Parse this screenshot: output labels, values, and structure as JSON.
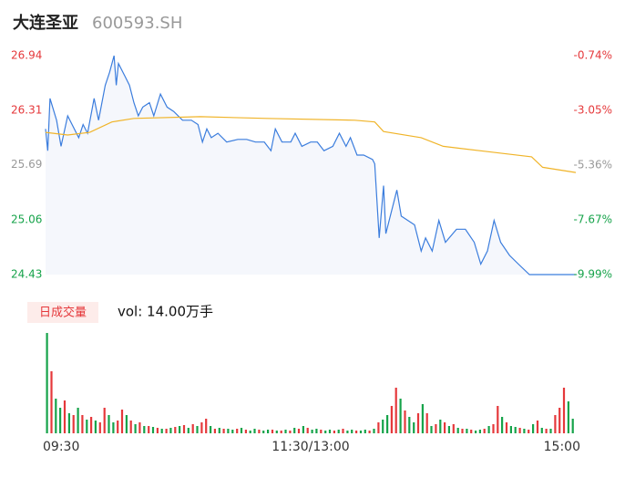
{
  "chart_data": {
    "type": "intraday",
    "title": "大连圣亚",
    "subtitle": "600593.SH",
    "volume_button": "日成交量",
    "volume_label": "vol: 14.00万手",
    "up_color": "#e5383b",
    "down_color": "#16a34a",
    "flat_color": "#999999",
    "line_color": "#3b7ddd",
    "avg_color": "#f0b429",
    "xlim": [
      0,
      240
    ],
    "xticks": [
      {
        "value": 0,
        "label": "09:30"
      },
      {
        "value": 120,
        "label": "11:30/13:00"
      },
      {
        "value": 240,
        "label": "15:00"
      }
    ],
    "ylim": [
      24.43,
      26.94
    ],
    "yticks": [
      26.94,
      26.31,
      25.69,
      25.06,
      24.43
    ],
    "y2lim": [
      -9.99,
      -0.74
    ],
    "y2ticks": [
      {
        "value": -0.74,
        "label": "-0.74%"
      },
      {
        "value": -3.05,
        "label": "-3.05%"
      },
      {
        "value": -5.36,
        "label": "-5.36%"
      },
      {
        "value": -7.67,
        "label": "-7.67%"
      },
      {
        "value": -9.99,
        "label": "-9.99%"
      }
    ],
    "price": {
      "x": [
        0,
        1,
        2,
        5,
        7,
        10,
        12,
        15,
        17,
        19,
        22,
        24,
        27,
        29,
        31,
        32,
        33,
        36,
        38,
        40,
        42,
        44,
        47,
        49,
        52,
        55,
        58,
        62,
        66,
        69,
        71,
        73,
        75,
        78,
        82,
        87,
        91,
        95,
        99,
        102,
        104,
        107,
        111,
        113,
        116,
        120,
        123,
        126,
        130,
        133,
        136,
        138,
        141,
        144,
        148,
        149,
        151,
        153,
        154,
        159,
        161,
        167,
        170,
        172,
        175,
        178,
        181,
        186,
        190,
        194,
        197,
        200,
        203,
        206,
        210,
        214,
        219,
        240
      ],
      "values": [
        26.1,
        25.85,
        26.45,
        26.2,
        25.9,
        26.25,
        26.15,
        26.0,
        26.15,
        26.05,
        26.45,
        26.2,
        26.6,
        26.75,
        26.94,
        26.6,
        26.85,
        26.7,
        26.6,
        26.4,
        26.25,
        26.35,
        26.4,
        26.25,
        26.5,
        26.35,
        26.3,
        26.2,
        26.2,
        26.15,
        25.95,
        26.1,
        26.0,
        26.05,
        25.95,
        25.98,
        25.98,
        25.95,
        25.95,
        25.85,
        26.1,
        25.95,
        25.95,
        26.05,
        25.9,
        25.95,
        25.95,
        25.85,
        25.9,
        26.05,
        25.9,
        26.0,
        25.8,
        25.8,
        25.75,
        25.7,
        24.85,
        25.45,
        24.9,
        25.4,
        25.1,
        25.0,
        24.7,
        24.85,
        24.7,
        25.05,
        24.8,
        24.95,
        24.95,
        24.8,
        24.55,
        24.7,
        25.05,
        24.8,
        24.65,
        24.55,
        24.43,
        24.43
      ]
    },
    "average": {
      "x": [
        0,
        10,
        20,
        30,
        40,
        70,
        100,
        140,
        149,
        153,
        170,
        180,
        200,
        220,
        225,
        240
      ],
      "values": [
        26.06,
        26.03,
        26.06,
        26.18,
        26.22,
        26.24,
        26.22,
        26.2,
        26.18,
        26.07,
        26.0,
        25.9,
        25.84,
        25.78,
        25.66,
        25.6
      ]
    },
    "volume": {
      "ylim": [
        0,
        110
      ],
      "x": [
        0,
        2,
        4,
        6,
        8,
        10,
        12,
        14,
        16,
        18,
        20,
        22,
        24,
        26,
        28,
        30,
        32,
        34,
        36,
        38,
        40,
        42,
        44,
        46,
        48,
        50,
        52,
        54,
        56,
        58,
        60,
        62,
        64,
        66,
        68,
        70,
        72,
        74,
        76,
        78,
        80,
        82,
        84,
        86,
        88,
        90,
        92,
        94,
        96,
        98,
        100,
        102,
        104,
        106,
        108,
        110,
        112,
        114,
        116,
        118,
        120,
        122,
        124,
        126,
        128,
        130,
        132,
        134,
        136,
        138,
        140,
        142,
        144,
        146,
        148,
        150,
        152,
        154,
        156,
        158,
        160,
        162,
        164,
        166,
        168,
        170,
        172,
        174,
        176,
        178,
        180,
        182,
        184,
        186,
        188,
        190,
        192,
        194,
        196,
        198,
        200,
        202,
        204,
        206,
        208,
        210,
        212,
        214,
        216,
        218,
        220,
        222,
        224,
        226,
        228,
        230,
        232,
        234,
        236,
        238
      ],
      "values": [
        110,
        68,
        38,
        28,
        36,
        22,
        20,
        28,
        20,
        15,
        18,
        14,
        12,
        28,
        20,
        12,
        14,
        26,
        20,
        14,
        10,
        12,
        8,
        8,
        7,
        6,
        5,
        5,
        6,
        7,
        8,
        9,
        6,
        10,
        8,
        12,
        16,
        8,
        5,
        6,
        5,
        5,
        4,
        5,
        6,
        4,
        3,
        5,
        4,
        3,
        4,
        4,
        3,
        3,
        4,
        3,
        6,
        5,
        8,
        6,
        4,
        5,
        4,
        3,
        4,
        3,
        4,
        5,
        3,
        4,
        3,
        3,
        4,
        3,
        5,
        12,
        15,
        20,
        30,
        50,
        38,
        25,
        18,
        12,
        22,
        32,
        22,
        8,
        10,
        15,
        12,
        8,
        10,
        6,
        5,
        5,
        4,
        3,
        4,
        5,
        8,
        10,
        30,
        18,
        12,
        8,
        7,
        6,
        5,
        4,
        10,
        14,
        6,
        5,
        5,
        20,
        28,
        50,
        35,
        16
      ],
      "colors": [
        "#16a34a",
        "#e5383b",
        "#16a34a",
        "#16a34a",
        "#e5383b",
        "#16a34a",
        "#e5383b",
        "#16a34a",
        "#e5383b",
        "#16a34a",
        "#e5383b",
        "#16a34a",
        "#e5383b",
        "#e5383b",
        "#16a34a",
        "#16a34a",
        "#e5383b",
        "#e5383b",
        "#16a34a",
        "#e5383b",
        "#16a34a",
        "#e5383b",
        "#16a34a",
        "#e5383b",
        "#16a34a",
        "#e5383b",
        "#16a34a",
        "#e5383b",
        "#16a34a",
        "#e5383b",
        "#16a34a",
        "#e5383b",
        "#16a34a",
        "#e5383b",
        "#16a34a",
        "#e5383b",
        "#e5383b",
        "#16a34a",
        "#e5383b",
        "#16a34a",
        "#e5383b",
        "#16a34a",
        "#16a34a",
        "#e5383b",
        "#16a34a",
        "#e5383b",
        "#16a34a",
        "#16a34a",
        "#e5383b",
        "#16a34a",
        "#16a34a",
        "#e5383b",
        "#16a34a",
        "#e5383b",
        "#16a34a",
        "#e5383b",
        "#16a34a",
        "#e5383b",
        "#16a34a",
        "#e5383b",
        "#16a34a",
        "#16a34a",
        "#e5383b",
        "#16a34a",
        "#16a34a",
        "#e5383b",
        "#16a34a",
        "#e5383b",
        "#16a34a",
        "#16a34a",
        "#e5383b",
        "#16a34a",
        "#16a34a",
        "#e5383b",
        "#16a34a",
        "#e5383b",
        "#16a34a",
        "#16a34a",
        "#e5383b",
        "#e5383b",
        "#16a34a",
        "#e5383b",
        "#16a34a",
        "#16a34a",
        "#e5383b",
        "#16a34a",
        "#e5383b",
        "#16a34a",
        "#e5383b",
        "#16a34a",
        "#e5383b",
        "#16a34a",
        "#e5383b",
        "#16a34a",
        "#e5383b",
        "#16a34a",
        "#e5383b",
        "#16a34a",
        "#16a34a",
        "#e5383b",
        "#16a34a",
        "#e5383b",
        "#e5383b",
        "#16a34a",
        "#e5383b",
        "#16a34a",
        "#16a34a",
        "#e5383b",
        "#16a34a",
        "#e5383b",
        "#16a34a",
        "#e5383b",
        "#16a34a",
        "#e5383b",
        "#16a34a",
        "#e5383b",
        "#e5383b",
        "#e5383b",
        "#16a34a",
        "#16a34a"
      ]
    }
  }
}
